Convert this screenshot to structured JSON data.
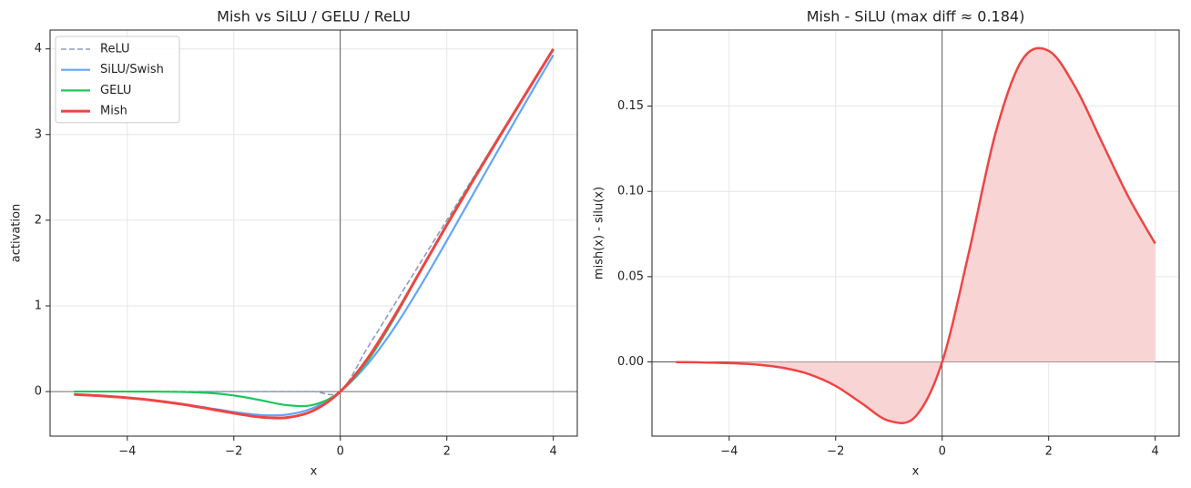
{
  "chart_data": [
    {
      "type": "line",
      "title": "Mish vs SiLU / GELU / ReLU",
      "x_label": "x",
      "y_label": "activation",
      "x": [
        -5,
        -4.5,
        -4,
        -3.5,
        -3,
        -2.5,
        -2,
        -1.5,
        -1,
        -0.5,
        0,
        0.5,
        1,
        1.5,
        2,
        2.5,
        3,
        3.5,
        4
      ],
      "series": [
        {
          "name": "ReLU",
          "color": "#8e9cc0",
          "linestyle": "dashed",
          "width": 1.6,
          "values": [
            0,
            0,
            0,
            0,
            0,
            0,
            0,
            0,
            0,
            0,
            0,
            0.5,
            1,
            1.5,
            2,
            2.5,
            3,
            3.5,
            4
          ]
        },
        {
          "name": "SiLU/Swish",
          "color": "#60a5fa",
          "linestyle": "solid",
          "width": 2.2,
          "values": [
            -0.0335,
            -0.0494,
            -0.0719,
            -0.1026,
            -0.1423,
            -0.1896,
            -0.2384,
            -0.2736,
            -0.2689,
            -0.1888,
            0,
            0.3112,
            0.7311,
            1.2264,
            1.7616,
            2.3103,
            2.8577,
            3.3974,
            3.9281
          ]
        },
        {
          "name": "GELU",
          "color": "#22c55e",
          "linestyle": "solid",
          "width": 2.2,
          "values": [
            0,
            0,
            -0.0001,
            -0.0008,
            -0.004,
            -0.0155,
            -0.0455,
            -0.1002,
            -0.1587,
            -0.1543,
            0,
            0.3457,
            0.8413,
            1.3998,
            1.9545,
            2.4845,
            2.996,
            3.4992,
            3.9999
          ]
        },
        {
          "name": "Mish",
          "color": "#ef4444",
          "linestyle": "solid",
          "width": 3,
          "values": [
            -0.0336,
            -0.0497,
            -0.0726,
            -0.1041,
            -0.1456,
            -0.1968,
            -0.2525,
            -0.2981,
            -0.3034,
            -0.2207,
            0,
            0.3752,
            0.8651,
            1.4034,
            1.944,
            2.4714,
            2.9865,
            3.494,
            3.9974
          ]
        }
      ],
      "xlim": [
        -5.45,
        4.45
      ],
      "ylim": [
        -0.52,
        4.22
      ],
      "xticks": [
        {
          "value": -4,
          "label": "−4"
        },
        {
          "value": -2,
          "label": "−2"
        },
        0,
        2,
        4
      ],
      "yticks": [
        0,
        1,
        2,
        3,
        4
      ],
      "grid": true,
      "legend": "upper left"
    },
    {
      "type": "area",
      "title": "Mish - SiLU (max diff ≈ 0.184)",
      "x_label": "x",
      "y_label": "mish(x) - silu(x)",
      "x": [
        -5,
        -4.5,
        -4,
        -3.5,
        -3,
        -2.5,
        -2,
        -1.5,
        -1,
        -0.5,
        0,
        0.5,
        1,
        1.5,
        2,
        2.5,
        3,
        3.5,
        4
      ],
      "values": [
        -0.0001,
        -0.0003,
        -0.0007,
        -0.0015,
        -0.0034,
        -0.0072,
        -0.0141,
        -0.0245,
        -0.0345,
        -0.032,
        0,
        0.064,
        0.134,
        0.177,
        0.1824,
        0.1611,
        0.1288,
        0.0966,
        0.0694
      ],
      "color": "#ef4444",
      "fill_color": "#f9d4d4",
      "xlim": [
        -5.45,
        4.45
      ],
      "ylim": [
        -0.0435,
        0.1946
      ],
      "xticks": [
        {
          "value": -4,
          "label": "−4"
        },
        {
          "value": -2,
          "label": "−2"
        },
        0,
        2,
        4
      ],
      "yticks": [
        {
          "value": 0,
          "label": "0.00"
        },
        {
          "value": 0.05,
          "label": "0.05"
        },
        {
          "value": 0.1,
          "label": "0.10"
        },
        {
          "value": 0.15,
          "label": "0.15"
        }
      ],
      "grid": true
    }
  ]
}
